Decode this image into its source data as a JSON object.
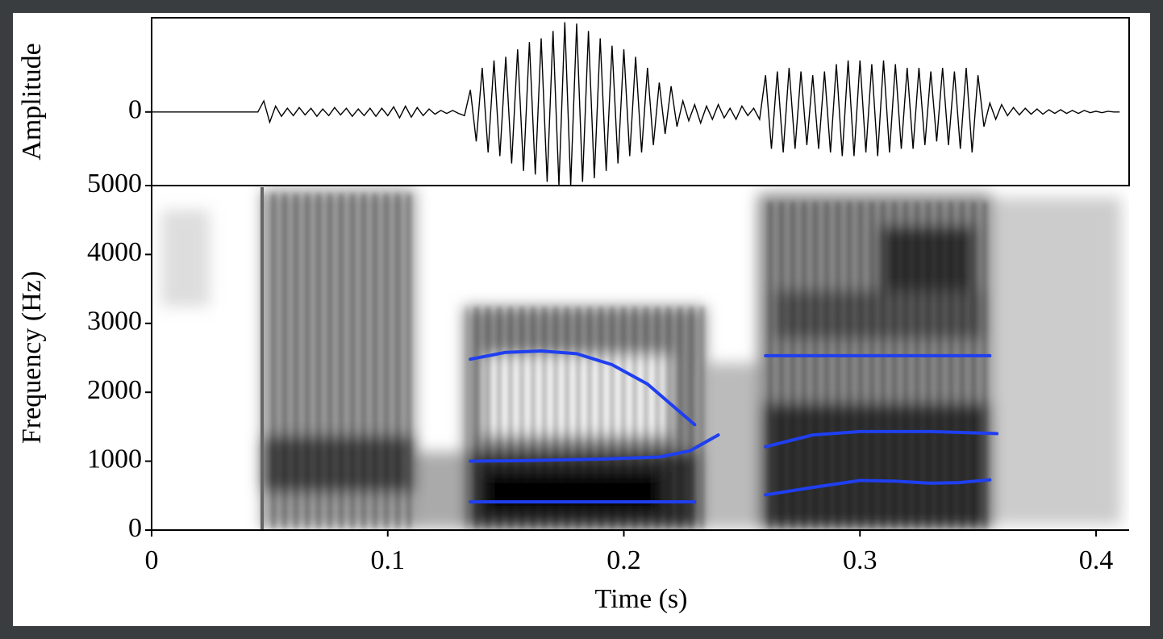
{
  "chart_data": [
    {
      "type": "line",
      "y_label": "Amplitude",
      "color": "#000000",
      "xlim": [
        0,
        0.414
      ],
      "ylim": [
        -1,
        1.28
      ],
      "yticks": [
        0
      ],
      "x": [
        0,
        0.0025,
        0.005,
        0.0075,
        0.01,
        0.0125,
        0.015,
        0.0175,
        0.02,
        0.0225,
        0.025,
        0.0275,
        0.03,
        0.0325,
        0.035,
        0.0375,
        0.04,
        0.0425,
        0.045,
        0.0475,
        0.05,
        0.0525,
        0.055,
        0.0575,
        0.06,
        0.0625,
        0.065,
        0.0675,
        0.07,
        0.0725,
        0.075,
        0.0775,
        0.08,
        0.0825,
        0.085,
        0.0875,
        0.09,
        0.0925,
        0.095,
        0.0975,
        0.1,
        0.1025,
        0.105,
        0.1075,
        0.11,
        0.1125,
        0.115,
        0.1175,
        0.12,
        0.1225,
        0.125,
        0.1275,
        0.13,
        0.1325,
        0.135,
        0.1375,
        0.14,
        0.1425,
        0.145,
        0.1475,
        0.15,
        0.1525,
        0.155,
        0.1575,
        0.16,
        0.1625,
        0.165,
        0.1675,
        0.17,
        0.1725,
        0.175,
        0.1775,
        0.18,
        0.1825,
        0.185,
        0.1875,
        0.19,
        0.1925,
        0.195,
        0.1975,
        0.2,
        0.2025,
        0.205,
        0.2075,
        0.21,
        0.2125,
        0.215,
        0.2175,
        0.22,
        0.2225,
        0.225,
        0.2275,
        0.23,
        0.2325,
        0.235,
        0.2375,
        0.24,
        0.2425,
        0.245,
        0.2475,
        0.25,
        0.2525,
        0.255,
        0.2575,
        0.26,
        0.2625,
        0.265,
        0.2675,
        0.27,
        0.2725,
        0.275,
        0.2775,
        0.28,
        0.2825,
        0.285,
        0.2875,
        0.29,
        0.2925,
        0.295,
        0.2975,
        0.3,
        0.3025,
        0.305,
        0.3075,
        0.31,
        0.3125,
        0.315,
        0.3175,
        0.32,
        0.3225,
        0.325,
        0.3275,
        0.33,
        0.3325,
        0.335,
        0.3375,
        0.34,
        0.3425,
        0.345,
        0.3475,
        0.35,
        0.3525,
        0.355,
        0.3575,
        0.36,
        0.3625,
        0.365,
        0.3675,
        0.37,
        0.3725,
        0.375,
        0.3775,
        0.38,
        0.3825,
        0.385,
        0.3875,
        0.39,
        0.3925,
        0.395,
        0.3975,
        0.4,
        0.4025,
        0.405,
        0.4075,
        0.41
      ],
      "values": [
        0,
        0,
        0,
        0,
        0,
        0,
        0,
        0,
        0,
        0,
        0,
        0,
        0,
        0,
        0,
        0,
        0,
        0,
        0,
        0.15,
        -0.14,
        0.08,
        -0.06,
        0.05,
        -0.05,
        0.06,
        -0.04,
        0.05,
        -0.06,
        0.04,
        -0.05,
        0.06,
        -0.04,
        0.05,
        -0.06,
        0.04,
        -0.05,
        0.05,
        -0.06,
        0.05,
        -0.05,
        0.07,
        -0.08,
        0.08,
        -0.07,
        0.06,
        -0.05,
        0.04,
        -0.03,
        0.02,
        -0.02,
        0.02,
        -0.02,
        -0.05,
        0.3,
        -0.4,
        0.6,
        -0.55,
        0.7,
        -0.6,
        0.75,
        -0.7,
        0.85,
        -0.8,
        0.95,
        -0.85,
        1,
        -0.95,
        1.1,
        -1,
        1.22,
        -1,
        1.2,
        -0.95,
        1.1,
        -0.9,
        1,
        -0.8,
        0.9,
        -0.7,
        0.85,
        -0.6,
        0.75,
        -0.55,
        0.6,
        -0.45,
        0.4,
        -0.3,
        0.35,
        -0.2,
        0.15,
        -0.12,
        0.1,
        -0.15,
        0.08,
        -0.1,
        0.1,
        -0.08,
        0.05,
        -0.1,
        0.08,
        -0.05,
        0.05,
        -0.1,
        0.5,
        -0.5,
        0.55,
        -0.55,
        0.6,
        -0.5,
        0.55,
        -0.45,
        0.5,
        -0.5,
        0.55,
        -0.55,
        0.65,
        -0.6,
        0.7,
        -0.6,
        0.7,
        -0.55,
        0.65,
        -0.6,
        0.7,
        -0.55,
        0.65,
        -0.5,
        0.6,
        -0.5,
        0.6,
        -0.45,
        0.55,
        -0.4,
        0.6,
        -0.45,
        0.55,
        -0.5,
        0.6,
        -0.55,
        0.5,
        -0.2,
        0.12,
        -0.1,
        0.1,
        -0.05,
        0.06,
        -0.04,
        0.05,
        -0.03,
        0.04,
        -0.03,
        0.03,
        -0.02,
        0.03,
        -0.02,
        0.02,
        -0.02,
        0.02,
        -0.01,
        0.01,
        -0.01,
        0.01,
        0,
        0
      ]
    },
    {
      "type": "line",
      "x_label": "Time (s)",
      "y_label": "Frequency (Hz)",
      "xlim": [
        0,
        0.414
      ],
      "xticks": [
        0,
        0.1,
        0.2,
        0.3,
        0.4
      ],
      "ylim": [
        0,
        5000
      ],
      "yticks": [
        0,
        1000,
        2000,
        3000,
        4000,
        5000
      ],
      "series": [
        {
          "color": "#1f3ff0",
          "x": [
            0.135,
            0.18,
            0.23,
            0.245,
            0.26,
            0.28,
            0.3,
            0.315,
            0.33,
            0.342,
            0.355
          ],
          "values": [
            410,
            410,
            410,
            null,
            510,
            620,
            720,
            710,
            680,
            690,
            730
          ]
        },
        {
          "color": "#1f3ff0",
          "x": [
            0.135,
            0.16,
            0.19,
            0.215,
            0.228,
            0.24,
            0.25,
            0.26,
            0.28,
            0.3,
            0.33,
            0.358
          ],
          "values": [
            1000,
            1010,
            1030,
            1060,
            1150,
            1380,
            null,
            1210,
            1380,
            1430,
            1430,
            1400
          ]
        },
        {
          "color": "#1f3ff0",
          "x": [
            0.135,
            0.15,
            0.165,
            0.18,
            0.195,
            0.21,
            0.23,
            0.245,
            0.26,
            0.355
          ],
          "values": [
            2480,
            2580,
            2600,
            2560,
            2400,
            2120,
            1530,
            null,
            2530,
            2530
          ]
        }
      ]
    }
  ]
}
